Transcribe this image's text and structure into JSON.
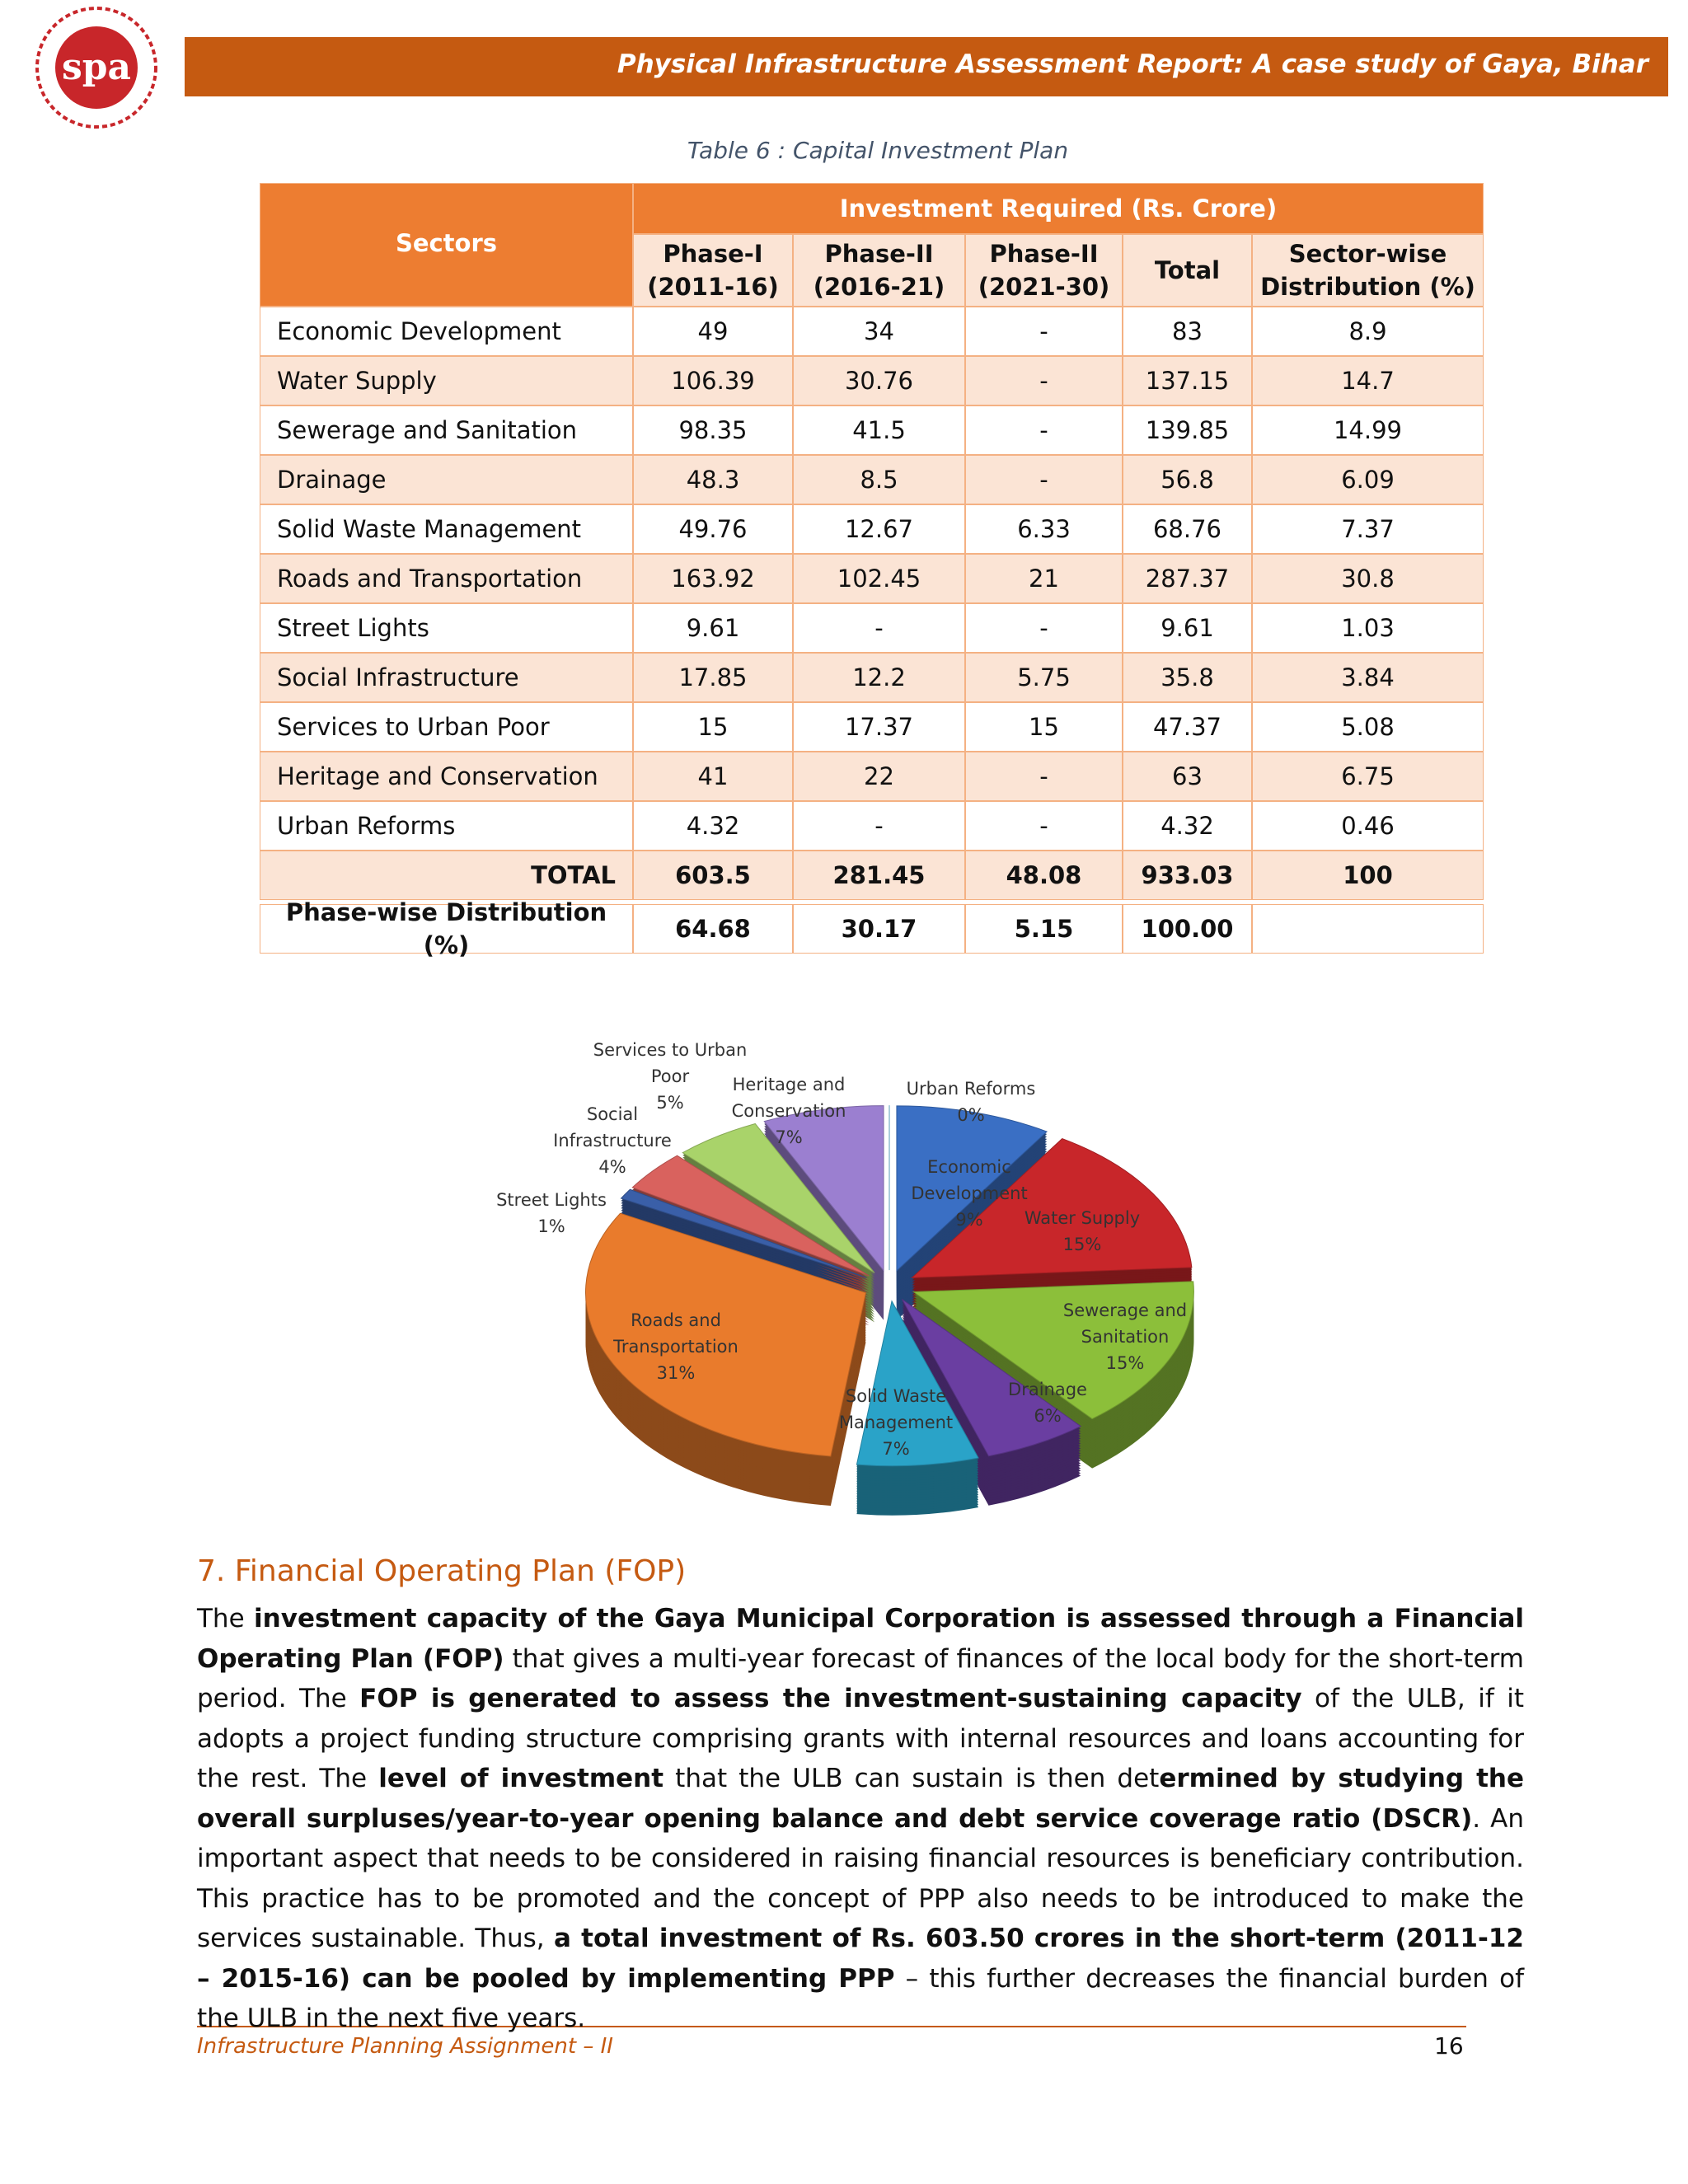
{
  "header": {
    "title": "Physical Infrastructure Assessment Report: A case study of Gaya, Bihar"
  },
  "table": {
    "caption": "Table 6 : Capital Investment Plan",
    "group_header": "Investment Required (Rs. Crore)",
    "columns": [
      "Sectors",
      "Phase-I (2011-16)",
      "Phase-II (2016-21)",
      "Phase-II (2021-30)",
      "Total",
      "Sector-wise Distribution (%)"
    ],
    "rows": [
      [
        "Economic Development",
        "49",
        "34",
        "-",
        "83",
        "8.9"
      ],
      [
        "Water Supply",
        "106.39",
        "30.76",
        "-",
        "137.15",
        "14.7"
      ],
      [
        "Sewerage and Sanitation",
        "98.35",
        "41.5",
        "-",
        "139.85",
        "14.99"
      ],
      [
        "Drainage",
        "48.3",
        "8.5",
        "-",
        "56.8",
        "6.09"
      ],
      [
        "Solid Waste Management",
        "49.76",
        "12.67",
        "6.33",
        "68.76",
        "7.37"
      ],
      [
        "Roads and Transportation",
        "163.92",
        "102.45",
        "21",
        "287.37",
        "30.8"
      ],
      [
        "Street Lights",
        "9.61",
        "-",
        "-",
        "9.61",
        "1.03"
      ],
      [
        "Social Infrastructure",
        "17.85",
        "12.2",
        "5.75",
        "35.8",
        "3.84"
      ],
      [
        "Services to Urban Poor",
        "15",
        "17.37",
        "15",
        "47.37",
        "5.08"
      ],
      [
        "Heritage and Conservation",
        "41",
        "22",
        "-",
        "63",
        "6.75"
      ],
      [
        "Urban Reforms",
        "4.32",
        "-",
        "-",
        "4.32",
        "0.46"
      ]
    ],
    "total_row": [
      "TOTAL",
      "603.5",
      "281.45",
      "48.08",
      "933.03",
      "100"
    ],
    "distribution_row": [
      "Phase-wise Distribution (%)",
      "64.68",
      "30.17",
      "5.15",
      "100.00"
    ]
  },
  "chart_data": {
    "type": "pie",
    "categories": [
      "Economic Development",
      "Water Supply",
      "Sewerage and Sanitation",
      "Drainage",
      "Solid Waste Management",
      "Roads and Transportation",
      "Street Lights",
      "Social Infrastructure",
      "Services to Urban Poor",
      "Heritage and Conservation",
      "Urban Reforms"
    ],
    "values": [
      9,
      15,
      15,
      6,
      7,
      31,
      1,
      4,
      5,
      7,
      0
    ],
    "value_labels": [
      "9%",
      "15%",
      "15%",
      "6%",
      "7%",
      "31%",
      "1%",
      "4%",
      "5%",
      "7%",
      "0%"
    ],
    "colors": [
      "#3a6fc4",
      "#c8262a",
      "#8cbf3a",
      "#6a3ea1",
      "#2aa3c8",
      "#e97b2c",
      "#3a5fa8",
      "#d9625e",
      "#a9d36a",
      "#9b7fd0",
      "#6ec6e6"
    ]
  },
  "section": {
    "heading": "7. Financial Operating Plan (FOP)",
    "paragraph": [
      {
        "text": "The ",
        "bold": false
      },
      {
        "text": "investment capacity of the Gaya Municipal Corporation is assessed through a Financial Operating Plan (FOP)",
        "bold": true
      },
      {
        "text": " that gives a multi-year forecast of finances of the local body for the short-term period. The ",
        "bold": false
      },
      {
        "text": "FOP is generated to assess the investment-sustaining capacity",
        "bold": true
      },
      {
        "text": " of the ULB, if it adopts a project funding structure comprising grants with internal resources and loans accounting for the rest. The ",
        "bold": false
      },
      {
        "text": "level of investment",
        "bold": true
      },
      {
        "text": " that the ULB can sustain is then det",
        "bold": false
      },
      {
        "text": "ermined by studying the overall surpluses/year-to-year opening balance and debt service coverage ratio (DSCR)",
        "bold": true
      },
      {
        "text": ". An important aspect that needs to be considered in raising financial resources is beneficiary contribution. This practice has to be promoted and the concept of PPP also needs to be introduced to make the services sustainable. Thus, ",
        "bold": false
      },
      {
        "text": "a total investment of Rs. 603.50 crores in the short-term (2011-12 – 2015-16) can be pooled by implementing PPP",
        "bold": true
      },
      {
        "text": " – this further decreases the financial burden of the ULB in the next five years.",
        "bold": false
      }
    ]
  },
  "footer": {
    "text": "Infrastructure Planning Assignment – II",
    "page": "16"
  }
}
